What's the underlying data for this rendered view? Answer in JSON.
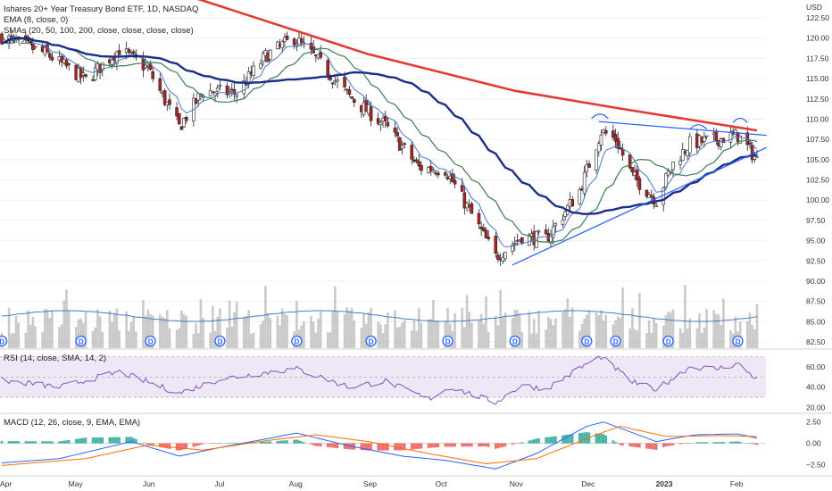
{
  "header": {
    "title": "Ishares 20+ Year Treasury Bond ETF, 1D, NASDAQ",
    "ema": "EMA (8, close, 0)",
    "smas": "SMAs (20, 50, 100, 200, close, close, close, close)",
    "vol": "Vol (20)",
    "currency": "USD"
  },
  "rsi_label": "RSI (14, close, SMA, 14, 2)",
  "macd_label": "MACD (12, 26, close, 9, EMA, EMA)",
  "colors": {
    "up": "#ffffff",
    "down": "#b22222",
    "candle_border": "#222222",
    "ema8": "#4a78c8",
    "sma20": "#3a7d57",
    "sma50": "#1a2e8a",
    "sma200": "#e53935",
    "trendline": "#2962ff",
    "rsi": "#7e57c2",
    "rsi_band": "#ede7f6",
    "macd": "#2962ff",
    "signal": "#ff6d00",
    "hist_up": "#26a69a",
    "hist_down": "#ef5350",
    "vol": "#9e9e9e",
    "vol_ma": "#4a78c8"
  },
  "chart_data": [
    {
      "type": "candlestick",
      "title": "Ishares 20+ Year Treasury Bond ETF, 1D, NASDAQ",
      "ylim": [
        82.5,
        122.5
      ],
      "y_ticks": [
        "122.50",
        "120.00",
        "117.50",
        "115.00",
        "112.50",
        "110.00",
        "107.50",
        "105.00",
        "102.50",
        "100.00",
        "97.50",
        "95.00",
        "92.50",
        "90.00",
        "87.50",
        "85.00",
        "82.50"
      ],
      "x_labels": [
        "Apr",
        "May",
        "Jun",
        "Jul",
        "Aug",
        "Sep",
        "Oct",
        "Nov",
        "Dec",
        "2023",
        "Feb"
      ],
      "x_range": [
        "2022-04-01",
        "2023-02-10"
      ],
      "close_keypoints": [
        [
          "2022-04-01",
          120.2
        ],
        [
          "2022-04-20",
          118.0
        ],
        [
          "2022-05-06",
          114.8
        ],
        [
          "2022-05-20",
          118.6
        ],
        [
          "2022-06-01",
          116.2
        ],
        [
          "2022-06-14",
          109.0
        ],
        [
          "2022-06-24",
          113.5
        ],
        [
          "2022-07-08",
          113.2
        ],
        [
          "2022-07-20",
          117.8
        ],
        [
          "2022-08-01",
          120.0
        ],
        [
          "2022-08-10",
          117.5
        ],
        [
          "2022-08-24",
          112.8
        ],
        [
          "2022-09-08",
          109.2
        ],
        [
          "2022-09-22",
          104.0
        ],
        [
          "2022-10-03",
          103.8
        ],
        [
          "2022-10-14",
          98.2
        ],
        [
          "2022-10-24",
          93.0
        ],
        [
          "2022-11-04",
          95.5
        ],
        [
          "2022-11-14",
          95.2
        ],
        [
          "2022-11-28",
          101.2
        ],
        [
          "2022-12-07",
          108.5
        ],
        [
          "2022-12-13",
          107.5
        ],
        [
          "2022-12-20",
          103.0
        ],
        [
          "2022-12-30",
          100.0
        ],
        [
          "2023-01-06",
          104.5
        ],
        [
          "2023-01-13",
          107.0
        ],
        [
          "2023-01-24",
          107.5
        ],
        [
          "2023-02-02",
          108.0
        ],
        [
          "2023-02-10",
          105.0
        ]
      ],
      "indicators": {
        "ema8": "EMA (8, close, 0)",
        "sma20": "SMA 20",
        "sma50": "SMA 50",
        "sma200_keypoints": [
          [
            "2022-06-20",
            125.0
          ],
          [
            "2022-09-01",
            118.0
          ],
          [
            "2022-11-01",
            113.5
          ],
          [
            "2022-12-15",
            111.3
          ],
          [
            "2023-02-10",
            108.6
          ]
        ]
      },
      "trendlines": [
        {
          "name": "resistance",
          "from": [
            "2022-12-06",
            109.7
          ],
          "to": [
            "2023-02-14",
            108.0
          ]
        },
        {
          "name": "support",
          "from": [
            "2022-10-31",
            92.0
          ],
          "to": [
            "2023-02-14",
            106.5
          ]
        }
      ],
      "dividend_markers": [
        "2022-04-01",
        "2022-05-04",
        "2022-06-02",
        "2022-07-01",
        "2022-08-02",
        "2022-09-02",
        "2022-10-04",
        "2022-11-01",
        "2022-12-01",
        "2022-12-13",
        "2023-01-04",
        "2023-02-02"
      ],
      "volume_overlay": {
        "label": "Vol (20)"
      }
    },
    {
      "type": "line",
      "title": "RSI (14, close, SMA, 14, 2)",
      "ylim": [
        15,
        75
      ],
      "y_ticks": [
        "60.00",
        "40.00",
        "20.00"
      ],
      "bands": [
        30,
        70
      ],
      "keypoints": [
        [
          "2022-04-01",
          47
        ],
        [
          "2022-04-25",
          40
        ],
        [
          "2022-05-20",
          55
        ],
        [
          "2022-06-14",
          34
        ],
        [
          "2022-07-01",
          48
        ],
        [
          "2022-07-25",
          56
        ],
        [
          "2022-08-02",
          58
        ],
        [
          "2022-08-24",
          40
        ],
        [
          "2022-09-08",
          46
        ],
        [
          "2022-09-26",
          28
        ],
        [
          "2022-10-05",
          40
        ],
        [
          "2022-10-24",
          25
        ],
        [
          "2022-11-04",
          42
        ],
        [
          "2022-11-14",
          38
        ],
        [
          "2022-12-01",
          63
        ],
        [
          "2022-12-07",
          70
        ],
        [
          "2022-12-20",
          45
        ],
        [
          "2022-12-30",
          38
        ],
        [
          "2023-01-13",
          60
        ],
        [
          "2023-01-24",
          58
        ],
        [
          "2023-02-02",
          63
        ],
        [
          "2023-02-10",
          48
        ]
      ]
    },
    {
      "type": "line",
      "title": "MACD (12, 26, close, 9, EMA, EMA)",
      "ylim": [
        -3.5,
        3.2
      ],
      "y_ticks": [
        "2.50",
        "0.00",
        "−2.50"
      ],
      "macd_keypoints": [
        [
          "2022-04-01",
          -2.3
        ],
        [
          "2022-04-25",
          -1.8
        ],
        [
          "2022-05-25",
          0.2
        ],
        [
          "2022-06-14",
          -1.5
        ],
        [
          "2022-07-01",
          -0.5
        ],
        [
          "2022-08-02",
          1.2
        ],
        [
          "2022-08-24",
          -0.3
        ],
        [
          "2022-09-15",
          -1.5
        ],
        [
          "2022-10-03",
          -2.0
        ],
        [
          "2022-10-24",
          -3.0
        ],
        [
          "2022-11-10",
          -1.2
        ],
        [
          "2022-12-01",
          2.0
        ],
        [
          "2022-12-08",
          2.5
        ],
        [
          "2022-12-30",
          0.2
        ],
        [
          "2023-01-15",
          1.0
        ],
        [
          "2023-02-02",
          1.1
        ],
        [
          "2023-02-10",
          0.6
        ]
      ],
      "signal_keypoints": [
        [
          "2022-04-01",
          -2.6
        ],
        [
          "2022-05-06",
          -1.8
        ],
        [
          "2022-06-01",
          -0.2
        ],
        [
          "2022-06-24",
          -0.8
        ],
        [
          "2022-07-20",
          0.3
        ],
        [
          "2022-08-10",
          1.0
        ],
        [
          "2022-09-01",
          0.2
        ],
        [
          "2022-09-26",
          -1.2
        ],
        [
          "2022-10-20",
          -2.4
        ],
        [
          "2022-11-10",
          -1.8
        ],
        [
          "2022-12-05",
          1.0
        ],
        [
          "2022-12-15",
          2.0
        ],
        [
          "2023-01-03",
          0.8
        ],
        [
          "2023-01-25",
          0.9
        ],
        [
          "2023-02-10",
          0.8
        ]
      ]
    }
  ]
}
